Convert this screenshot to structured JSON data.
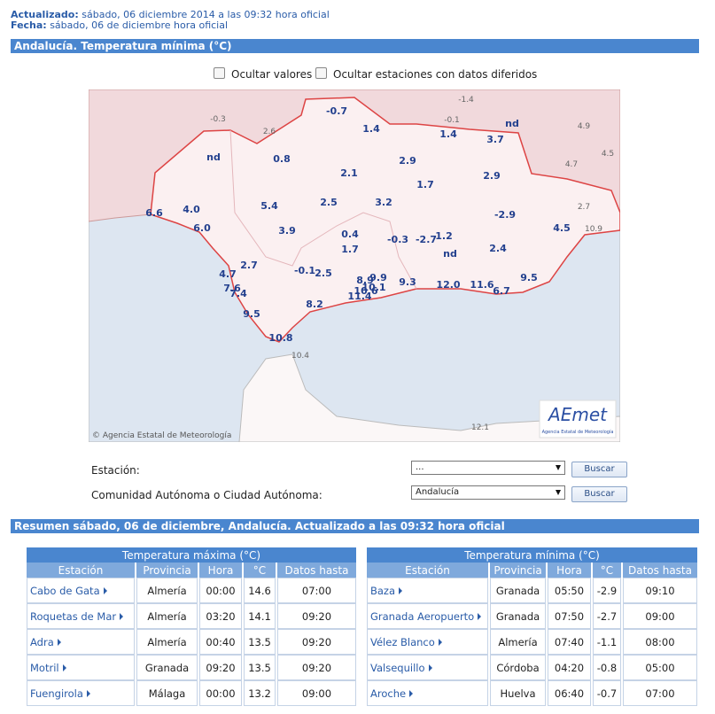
{
  "header": {
    "updated_label": "Actualizado:",
    "updated": "sábado, 06 diciembre 2014 a las 09:32 hora oficial",
    "date_label": "Fecha:",
    "date": "sábado, 06 de diciembre hora oficial"
  },
  "section_title": "Andalucía. Temperatura mínima (°C)",
  "options": [
    "Ocultar valores",
    "Ocultar estaciones con datos diferidos"
  ],
  "map": {
    "labels": [
      "-0.7",
      "1.4",
      "1.4",
      "3.7",
      "nd",
      "nd",
      "0.8",
      "2.1",
      "2.9",
      "2.9",
      "1.7",
      "5.4",
      "2.5",
      "3.2",
      "-2.9",
      "6.6",
      "4.0",
      "6.0",
      "3.9",
      "0.4",
      "-0.3",
      "-2.7",
      "1.2",
      "4.5",
      "1.7",
      "nd",
      "2.4",
      "2.7",
      "-0.1",
      "2.5",
      "4.7",
      "8.9",
      "9.9",
      "9.3",
      "12.0",
      "11.6",
      "9.5",
      "7.6",
      "7.4",
      "10.1",
      "10.6",
      "11.4",
      "6.7",
      "8.2",
      "9.5",
      "10.8"
    ],
    "other_labels": [
      "-1.4",
      "-0.3",
      "2.6",
      "-0.1",
      "4.9",
      "4.7",
      "4.5",
      "2.7",
      "10.9",
      "10.4",
      "12.1"
    ],
    "credit": "© Agencia Estatal de Meteorología",
    "logo": "AEmet",
    "logo_sub": "Agencia Estatal de Meteorología"
  },
  "form": {
    "station_label": "Estación:",
    "station_value": "...",
    "region_label": "Comunidad Autónoma o Ciudad Autónoma:",
    "region_value": "Andalucía",
    "button": "Buscar"
  },
  "summary_title": "Resumen sábado, 06 de diciembre, Andalucía. Actualizado a las 09:32 hora oficial",
  "tables": [
    {
      "title": "Temperatura máxima (°C)",
      "headers": [
        "Estación",
        "Provincia",
        "Hora",
        "°C",
        "Datos hasta"
      ],
      "rows": [
        [
          "Cabo de Gata",
          "Almería",
          "00:00",
          "14.6",
          "07:00"
        ],
        [
          "Roquetas de Mar",
          "Almería",
          "03:20",
          "14.1",
          "09:20"
        ],
        [
          "Adra",
          "Almería",
          "00:40",
          "13.5",
          "09:20"
        ],
        [
          "Motril",
          "Granada",
          "09:20",
          "13.5",
          "09:20"
        ],
        [
          "Fuengirola",
          "Málaga",
          "00:00",
          "13.2",
          "09:00"
        ]
      ]
    },
    {
      "title": "Temperatura mínima (°C)",
      "headers": [
        "Estación",
        "Provincia",
        "Hora",
        "°C",
        "Datos hasta"
      ],
      "rows": [
        [
          "Baza",
          "Granada",
          "05:50",
          "-2.9",
          "09:10"
        ],
        [
          "Granada Aeropuerto",
          "Granada",
          "07:50",
          "-2.7",
          "09:00"
        ],
        [
          "Vélez Blanco",
          "Almería",
          "07:40",
          "-1.1",
          "08:00"
        ],
        [
          "Valsequillo",
          "Córdoba",
          "04:20",
          "-0.8",
          "05:00"
        ],
        [
          "Aroche",
          "Huelva",
          "06:40",
          "-0.7",
          "07:00"
        ]
      ]
    }
  ]
}
